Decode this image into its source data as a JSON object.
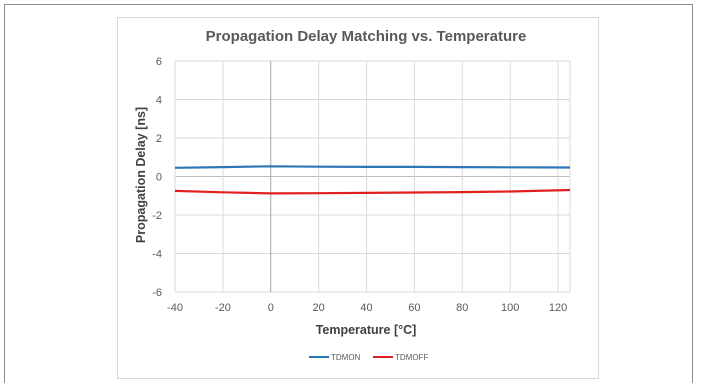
{
  "chart_data": {
    "type": "line",
    "title": "Propagation Delay Matching vs. Temperature",
    "xlabel": "Temperature [°C]",
    "ylabel": "Propagation Delay [ns]",
    "xlim": [
      -40,
      125
    ],
    "ylim": [
      -6,
      6
    ],
    "xticks": [
      -40,
      -20,
      0,
      20,
      40,
      60,
      80,
      100,
      120
    ],
    "yticks": [
      -6,
      -4,
      -2,
      0,
      2,
      4,
      6
    ],
    "grid": true,
    "legend_position": "bottom",
    "series": [
      {
        "name": "TDMON",
        "color": "#2e75b6",
        "x": [
          -40,
          -20,
          0,
          20,
          40,
          60,
          80,
          100,
          125
        ],
        "y": [
          0.45,
          0.49,
          0.53,
          0.51,
          0.5,
          0.5,
          0.49,
          0.48,
          0.47
        ]
      },
      {
        "name": "TDMOFF",
        "color": "#e0201f",
        "x": [
          -40,
          -20,
          0,
          20,
          40,
          60,
          80,
          100,
          125
        ],
        "y": [
          -0.75,
          -0.82,
          -0.88,
          -0.87,
          -0.85,
          -0.83,
          -0.81,
          -0.78,
          -0.7
        ]
      }
    ]
  }
}
